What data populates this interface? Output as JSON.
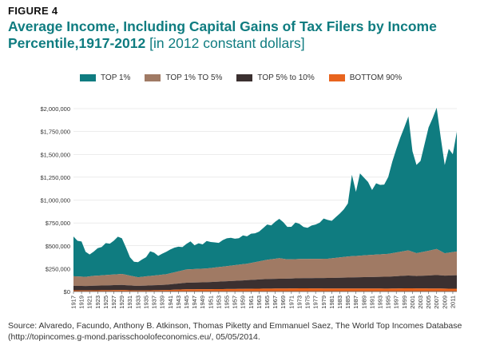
{
  "figure_label": "FIGURE 4",
  "title_main": "Average Income, Including Capital Gains of Tax Filers by Income Percentile,1917-2012",
  "title_sub": "[in 2012 constant dollars]",
  "source": "Source: Alvaredo, Facundo, Anthony B. Atkinson, Thomas Piketty and Emmanuel Saez, The World Top Incomes Database (http://topincomes.g-mond.parisschoolofeconomics.eu/, 05/05/2014.",
  "colors": {
    "top1": "#0f7c80",
    "top1to5": "#a07a64",
    "top5to10": "#3b3030",
    "bottom90": "#e8641e"
  },
  "chart_data": {
    "type": "area",
    "stacked": true,
    "title": "Average Income, Including Capital Gains of Tax Filers by Income Percentile,1917-2012 [in 2012 constant dollars]",
    "xlabel": "",
    "ylabel": "",
    "ylim": [
      0,
      2000000
    ],
    "y_ticks": [
      0,
      250000,
      500000,
      750000,
      1000000,
      1250000,
      1500000,
      1750000,
      2000000
    ],
    "y_tick_labels": [
      "$0",
      "$250,000",
      "$500,000",
      "$750,000",
      "$1,000,000",
      "$1,250,000",
      "$1,500,000",
      "$1,750,000",
      "$2,000,000"
    ],
    "x_tick_labels": [
      "1917",
      "1919",
      "1921",
      "1923",
      "1925",
      "1927",
      "1929",
      "1931",
      "1933",
      "1935",
      "1937",
      "1939",
      "1941",
      "1943",
      "1945",
      "1947",
      "1949",
      "1951",
      "1953",
      "1955",
      "1957",
      "1959",
      "1961",
      "1963",
      "1965",
      "1967",
      "1969",
      "1971",
      "1973",
      "1975",
      "1977",
      "1979",
      "1981",
      "1983",
      "1985",
      "1987",
      "1989",
      "1991",
      "1993",
      "1995",
      "1997",
      "1999",
      "2001",
      "2003",
      "2005",
      "2007",
      "2009",
      "2011"
    ],
    "grid": "horizontal",
    "legend_position": "top",
    "series": [
      {
        "name": "BOTTOM 90%",
        "color": "#e8641e",
        "points": [
          [
            1917,
            13000
          ],
          [
            1920,
            12000
          ],
          [
            1922,
            13000
          ],
          [
            1929,
            16000
          ],
          [
            1933,
            11000
          ],
          [
            1940,
            16000
          ],
          [
            1945,
            24000
          ],
          [
            1950,
            25000
          ],
          [
            1955,
            27000
          ],
          [
            1960,
            29000
          ],
          [
            1965,
            32000
          ],
          [
            1970,
            33000
          ],
          [
            1973,
            35000
          ],
          [
            1980,
            33000
          ],
          [
            1985,
            33000
          ],
          [
            1990,
            33000
          ],
          [
            1995,
            32000
          ],
          [
            2000,
            35000
          ],
          [
            2005,
            33000
          ],
          [
            2007,
            33000
          ],
          [
            2010,
            31000
          ],
          [
            2012,
            31000
          ]
        ]
      },
      {
        "name": "TOP 5% to 10%",
        "color": "#3b3030",
        "points": [
          [
            1917,
            49000
          ],
          [
            1920,
            48000
          ],
          [
            1922,
            50000
          ],
          [
            1929,
            56000
          ],
          [
            1933,
            50000
          ],
          [
            1940,
            58000
          ],
          [
            1945,
            72000
          ],
          [
            1950,
            77000
          ],
          [
            1955,
            85000
          ],
          [
            1960,
            95000
          ],
          [
            1965,
            105000
          ],
          [
            1970,
            108000
          ],
          [
            1975,
            112000
          ],
          [
            1980,
            115000
          ],
          [
            1985,
            120000
          ],
          [
            1990,
            125000
          ],
          [
            1995,
            130000
          ],
          [
            2000,
            140000
          ],
          [
            2002,
            135000
          ],
          [
            2005,
            142000
          ],
          [
            2007,
            147000
          ],
          [
            2009,
            142000
          ],
          [
            2012,
            147000
          ]
        ]
      },
      {
        "name": "TOP 1% TO 5%",
        "color": "#a07a64",
        "points": [
          [
            1917,
            105000
          ],
          [
            1920,
            100000
          ],
          [
            1922,
            108000
          ],
          [
            1929,
            120000
          ],
          [
            1933,
            95000
          ],
          [
            1940,
            115000
          ],
          [
            1945,
            145000
          ],
          [
            1950,
            150000
          ],
          [
            1955,
            165000
          ],
          [
            1960,
            180000
          ],
          [
            1965,
            210000
          ],
          [
            1968,
            225000
          ],
          [
            1970,
            210000
          ],
          [
            1975,
            210000
          ],
          [
            1980,
            210000
          ],
          [
            1985,
            230000
          ],
          [
            1990,
            240000
          ],
          [
            1995,
            250000
          ],
          [
            2000,
            275000
          ],
          [
            2002,
            250000
          ],
          [
            2005,
            270000
          ],
          [
            2007,
            285000
          ],
          [
            2009,
            245000
          ],
          [
            2012,
            260000
          ]
        ]
      },
      {
        "name": "TOP 1%",
        "color": "#0f7c80",
        "points": [
          [
            1917,
            435000
          ],
          [
            1918,
            390000
          ],
          [
            1919,
            385000
          ],
          [
            1920,
            275000
          ],
          [
            1921,
            240000
          ],
          [
            1922,
            265000
          ],
          [
            1923,
            300000
          ],
          [
            1924,
            310000
          ],
          [
            1925,
            350000
          ],
          [
            1926,
            340000
          ],
          [
            1927,
            370000
          ],
          [
            1928,
            410000
          ],
          [
            1929,
            390000
          ],
          [
            1930,
            300000
          ],
          [
            1931,
            200000
          ],
          [
            1932,
            160000
          ],
          [
            1933,
            165000
          ],
          [
            1934,
            190000
          ],
          [
            1935,
            210000
          ],
          [
            1936,
            270000
          ],
          [
            1937,
            250000
          ],
          [
            1938,
            210000
          ],
          [
            1939,
            230000
          ],
          [
            1940,
            245000
          ],
          [
            1941,
            260000
          ],
          [
            1942,
            270000
          ],
          [
            1943,
            270000
          ],
          [
            1944,
            255000
          ],
          [
            1945,
            280000
          ],
          [
            1946,
            305000
          ],
          [
            1947,
            260000
          ],
          [
            1948,
            280000
          ],
          [
            1949,
            265000
          ],
          [
            1950,
            300000
          ],
          [
            1951,
            285000
          ],
          [
            1952,
            275000
          ],
          [
            1953,
            265000
          ],
          [
            1954,
            290000
          ],
          [
            1955,
            305000
          ],
          [
            1956,
            305000
          ],
          [
            1957,
            290000
          ],
          [
            1958,
            290000
          ],
          [
            1959,
            315000
          ],
          [
            1960,
            300000
          ],
          [
            1961,
            320000
          ],
          [
            1962,
            315000
          ],
          [
            1963,
            325000
          ],
          [
            1964,
            355000
          ],
          [
            1965,
            385000
          ],
          [
            1966,
            370000
          ],
          [
            1967,
            405000
          ],
          [
            1968,
            430000
          ],
          [
            1969,
            400000
          ],
          [
            1970,
            355000
          ],
          [
            1971,
            355000
          ],
          [
            1972,
            400000
          ],
          [
            1973,
            385000
          ],
          [
            1974,
            350000
          ],
          [
            1975,
            340000
          ],
          [
            1976,
            365000
          ],
          [
            1977,
            375000
          ],
          [
            1978,
            395000
          ],
          [
            1979,
            440000
          ],
          [
            1980,
            425000
          ],
          [
            1981,
            410000
          ],
          [
            1982,
            445000
          ],
          [
            1983,
            480000
          ],
          [
            1984,
            520000
          ],
          [
            1985,
            580000
          ],
          [
            1986,
            890000
          ],
          [
            1987,
            700000
          ],
          [
            1988,
            900000
          ],
          [
            1989,
            850000
          ],
          [
            1990,
            800000
          ],
          [
            1991,
            710000
          ],
          [
            1992,
            780000
          ],
          [
            1993,
            760000
          ],
          [
            1994,
            760000
          ],
          [
            1995,
            840000
          ],
          [
            1996,
            1000000
          ],
          [
            1997,
            1130000
          ],
          [
            1998,
            1250000
          ],
          [
            1999,
            1355000
          ],
          [
            2000,
            1465000
          ],
          [
            2001,
            1100000
          ],
          [
            2002,
            965000
          ],
          [
            2003,
            1000000
          ],
          [
            2004,
            1175000
          ],
          [
            2005,
            1350000
          ],
          [
            2006,
            1440000
          ],
          [
            2007,
            1545000
          ],
          [
            2008,
            1245000
          ],
          [
            2009,
            965000
          ],
          [
            2010,
            1135000
          ],
          [
            2011,
            1070000
          ],
          [
            2012,
            1310000
          ]
        ]
      }
    ]
  }
}
